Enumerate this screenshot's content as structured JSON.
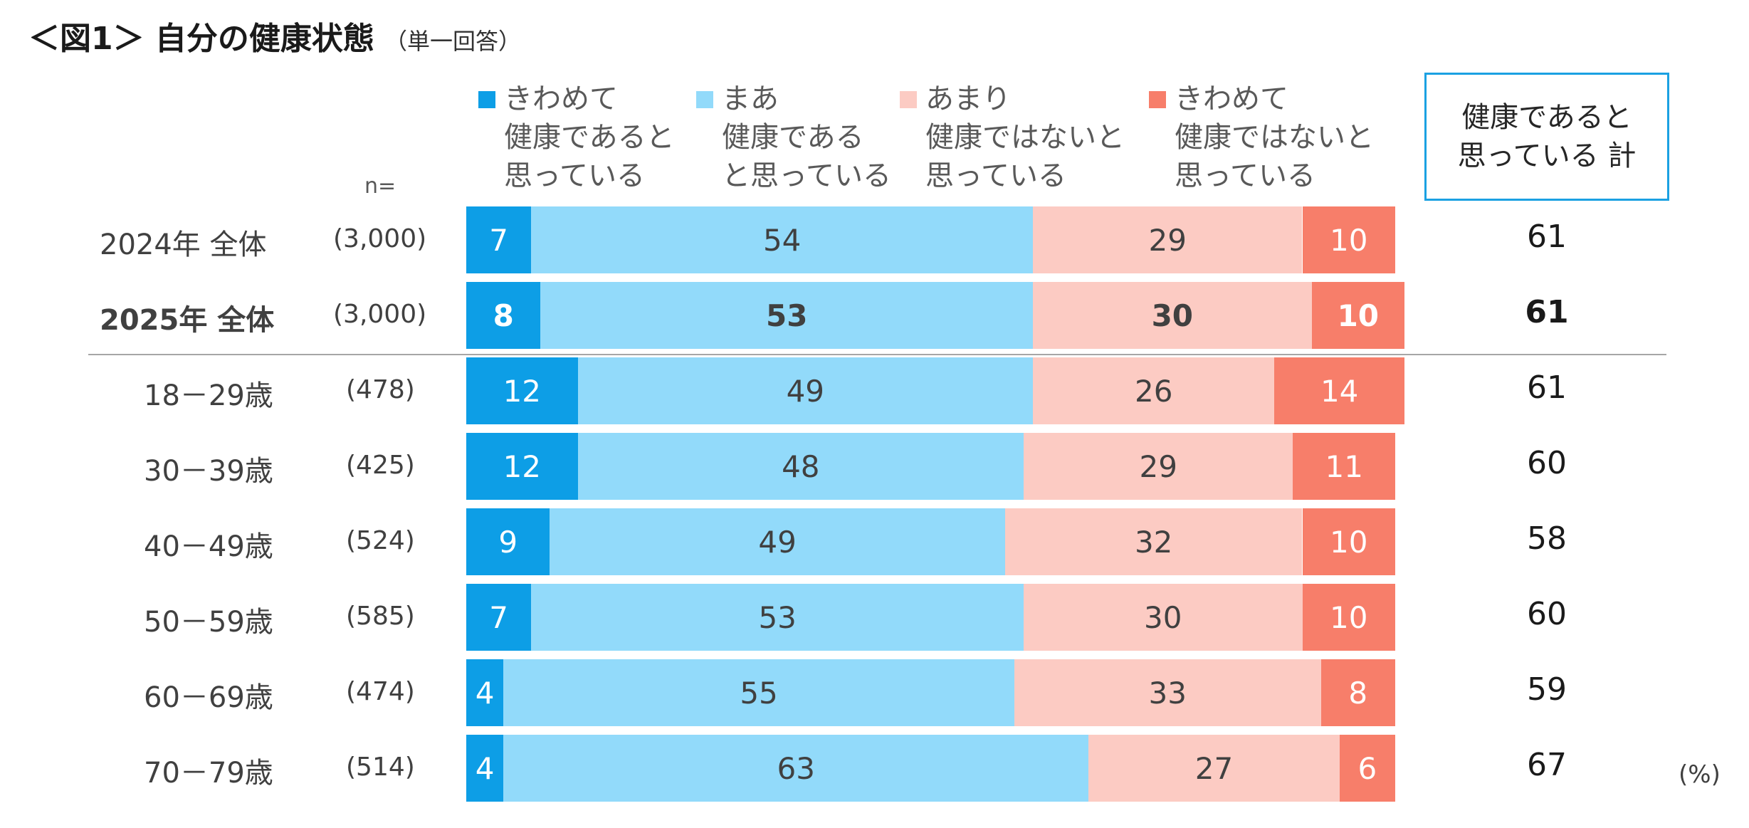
{
  "header": {
    "title": "＜図1＞ 自分の健康状態",
    "subtitle": "（単一回答）"
  },
  "n_label": "n=",
  "total_header": "健康であると\n思っている 計",
  "unit": "(%)",
  "colors": {
    "very_healthy": "#0d9ee6",
    "fairly_healthy": "#92dafa",
    "not_very_healthy": "#fccbc3",
    "not_healthy": "#f77e6a"
  },
  "chart_data": {
    "type": "bar",
    "orientation": "horizontal-stacked-100",
    "xlim": [
      0,
      100
    ],
    "series": [
      {
        "name": "きわめて\n健康であると\n思っている",
        "values": [
          7,
          8,
          12,
          12,
          9,
          7,
          4,
          4
        ]
      },
      {
        "name": "まあ\n健康である\nと思っている",
        "values": [
          54,
          53,
          49,
          48,
          49,
          53,
          55,
          63
        ]
      },
      {
        "name": "あまり\n健康ではないと\n思っている",
        "values": [
          29,
          30,
          26,
          29,
          32,
          30,
          33,
          27
        ]
      },
      {
        "name": "きわめて\n健康ではないと\n思っている",
        "values": [
          10,
          10,
          14,
          11,
          10,
          10,
          8,
          6
        ]
      }
    ],
    "rows": [
      {
        "label": "2024年 全体",
        "n": "(3,000)",
        "total": "61",
        "bold": false
      },
      {
        "label": "2025年 全体",
        "n": "(3,000)",
        "total": "61",
        "bold": true
      },
      {
        "label": "18－29歳",
        "n": "(478)",
        "total": "61",
        "bold": false
      },
      {
        "label": "30－39歳",
        "n": "(425)",
        "total": "60",
        "bold": false
      },
      {
        "label": "40－49歳",
        "n": "(524)",
        "total": "58",
        "bold": false
      },
      {
        "label": "50－59歳",
        "n": "(585)",
        "total": "60",
        "bold": false
      },
      {
        "label": "60－69歳",
        "n": "(474)",
        "total": "59",
        "bold": false
      },
      {
        "label": "70－79歳",
        "n": "(514)",
        "total": "67",
        "bold": false
      }
    ]
  }
}
